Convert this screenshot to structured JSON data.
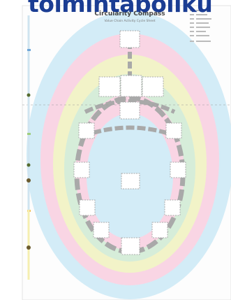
{
  "header": {
    "word": "toimintaboliku"
  },
  "poster": {
    "title": "Circularity Compass",
    "subtitle": "Value Chain Activity Cycle Sheet"
  }
}
